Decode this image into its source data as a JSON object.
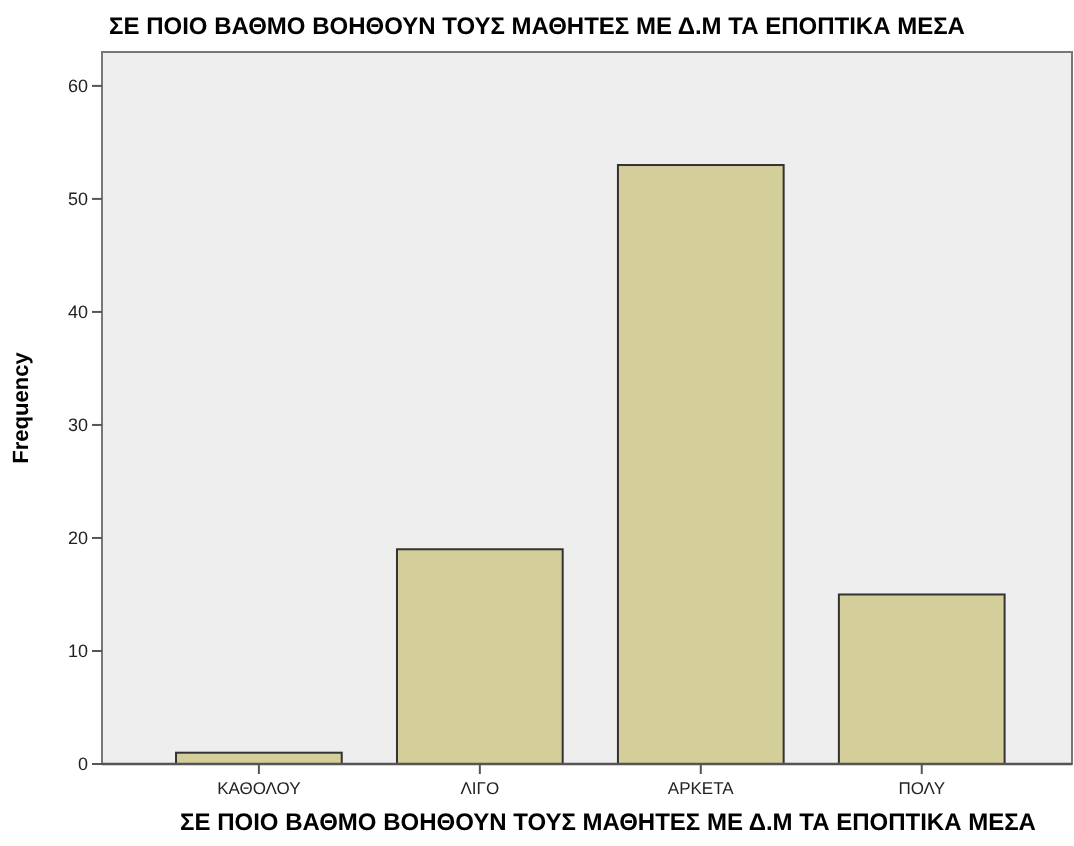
{
  "chart_data": {
    "type": "bar",
    "title": "ΣΕ ΠΟΙΟ ΒΑΘΜΟ ΒΟΗΘΟΥΝ ΤΟΥΣ ΜΑΘΗΤΕΣ ΜΕ Δ.Μ ΤΑ ΕΠΟΠΤΙΚΑ ΜΕΣΑ",
    "xlabel": "ΣΕ ΠΟΙΟ ΒΑΘΜΟ ΒΟΗΘΟΥΝ ΤΟΥΣ ΜΑΘΗΤΕΣ ΜΕ Δ.Μ ΤΑ ΕΠΟΠΤΙΚΑ ΜΕΣΑ",
    "ylabel": "Frequency",
    "categories": [
      "ΚΑΘΟΛΟΥ",
      "ΛΙΓΟ",
      "ΑΡΚΕΤΑ",
      "ΠΟΛΥ"
    ],
    "values": [
      1,
      19,
      53,
      15
    ],
    "color": "#d3ce9a",
    "ylim": [
      0,
      63
    ],
    "yticks": [
      0,
      10,
      20,
      30,
      40,
      50,
      60
    ],
    "grid": false
  }
}
